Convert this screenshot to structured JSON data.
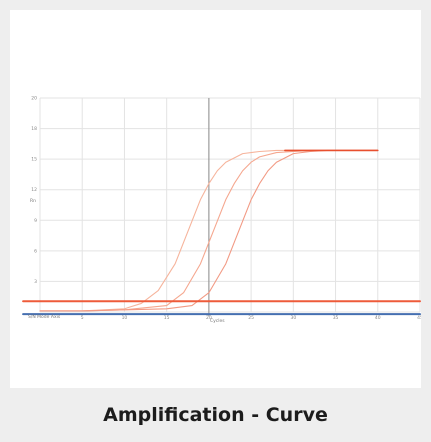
{
  "caption": "Amplification - Curve",
  "chart_data": {
    "type": "line",
    "title": "",
    "xlabel": "Cycles",
    "ylabel": "Rn",
    "xlim": [
      0,
      45
    ],
    "ylim": [
      0,
      20
    ],
    "x_ticks": [
      "0",
      "5",
      "10",
      "15",
      "20",
      "25",
      "30",
      "35",
      "40",
      "45"
    ],
    "y_ticks": [
      "",
      "3",
      "6",
      "9",
      "12",
      "15",
      "18",
      "20"
    ],
    "corner_label": "S/N Mode Axis",
    "grid": true,
    "series": [
      {
        "color": "#f6b49c",
        "width": 1.1,
        "x": [
          0,
          5,
          10,
          12,
          14,
          16,
          17,
          18,
          19,
          20,
          21,
          22,
          24,
          26,
          28,
          30,
          40
        ],
        "y": [
          0.1,
          0.1,
          0.3,
          0.8,
          2.0,
          4.5,
          6.5,
          8.5,
          10.5,
          12.0,
          13.2,
          14.0,
          14.8,
          15.0,
          15.1,
          15.1,
          15.1
        ]
      },
      {
        "color": "#f5a78f",
        "width": 1.1,
        "x": [
          0,
          5,
          10,
          15,
          17,
          19,
          20,
          21,
          22,
          23,
          24,
          25,
          26,
          28,
          30,
          32,
          40
        ],
        "y": [
          0.1,
          0.1,
          0.2,
          0.6,
          1.8,
          4.5,
          6.5,
          8.5,
          10.5,
          12.0,
          13.2,
          14.0,
          14.5,
          14.9,
          15.0,
          15.1,
          15.1
        ]
      },
      {
        "color": "#f29a84",
        "width": 1.1,
        "x": [
          0,
          5,
          10,
          15,
          18,
          20,
          22,
          23,
          24,
          25,
          26,
          27,
          28,
          30,
          32,
          34,
          40
        ],
        "y": [
          0.1,
          0.1,
          0.2,
          0.3,
          0.6,
          1.8,
          4.5,
          6.5,
          8.5,
          10.5,
          12.0,
          13.2,
          14.0,
          14.8,
          15.0,
          15.1,
          15.1
        ]
      },
      {
        "color": "#e8502f",
        "width": 1.6,
        "x": [
          29,
          40
        ],
        "y": [
          15.1,
          15.1
        ]
      },
      {
        "color": "#ee5b3a",
        "width": 2.0,
        "x": [
          -2,
          45
        ],
        "y": [
          1.0,
          1.0
        ]
      },
      {
        "color": "#456fb0",
        "width": 2.0,
        "x": [
          -2,
          45
        ],
        "y": [
          -0.2,
          -0.2
        ]
      }
    ],
    "vline_x": 20
  }
}
